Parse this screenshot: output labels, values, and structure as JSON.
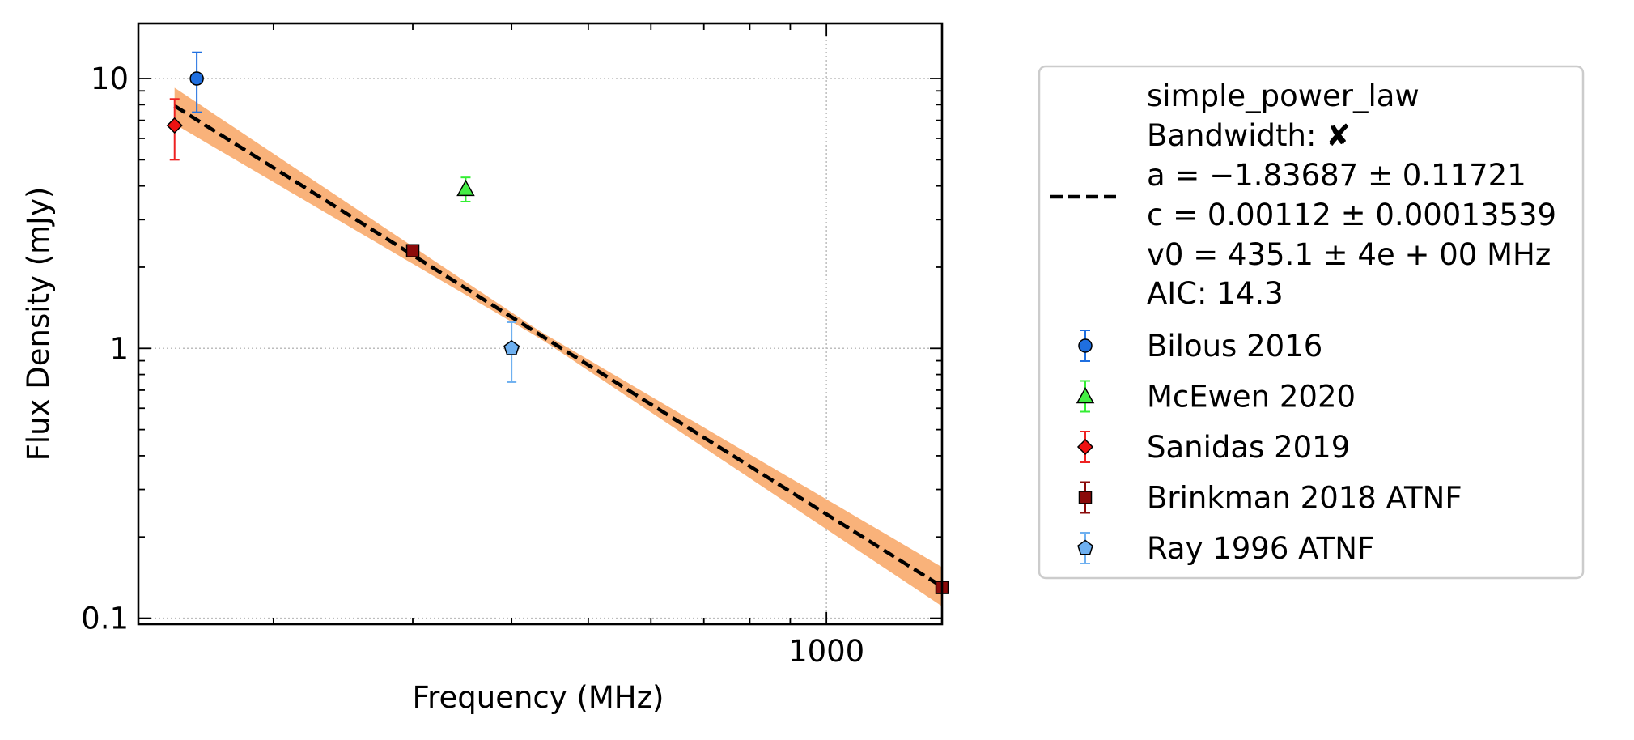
{
  "chart_data": {
    "type": "scatter",
    "xlabel": "Frequency (MHz)",
    "ylabel": "Flux Density (mJy)",
    "x_scale": "log",
    "y_scale": "log",
    "xlim": [
      135,
      1400
    ],
    "ylim": [
      0.095,
      16
    ],
    "x_ticks": [
      {
        "value": 1000,
        "label": "1000"
      }
    ],
    "y_ticks": [
      {
        "value": 0.1,
        "label": "0.1"
      },
      {
        "value": 1,
        "label": "1"
      },
      {
        "value": 10,
        "label": "10"
      }
    ],
    "grid": true,
    "legend_position": "outside-right",
    "fit": {
      "name": "simple_power_law",
      "bandwidth_label": "Bandwidth: ",
      "bandwidth_mark": "✘",
      "a_label": "a = −1.83687 ± 0.11721",
      "c_label": "c = 0.00112 ± 0.00013539",
      "v0_label": "v0 = 435.1 ± 4e + 00 MHz",
      "aic_label": "AIC: 14.3",
      "a": -1.83687,
      "a_err": 0.11721,
      "c": 0.00112,
      "c_err": 0.00013539,
      "v0": 435.1,
      "x_range": [
        150,
        1400
      ],
      "line_color": "#000000",
      "band_color": "#f9b27a"
    },
    "series": [
      {
        "name": "Bilous 2016",
        "marker": "circle",
        "color": "#1f6fe0",
        "err_color": "#1f6fe0",
        "points": [
          {
            "x": 160,
            "y": 10.0,
            "yerr_low": 2.5,
            "yerr_high": 2.5
          }
        ]
      },
      {
        "name": "McEwen 2020",
        "marker": "triangle",
        "color": "#44ee44",
        "err_color": "#33ee33",
        "points": [
          {
            "x": 350,
            "y": 3.9,
            "yerr_low": 0.4,
            "yerr_high": 0.4
          }
        ]
      },
      {
        "name": "Sanidas 2019",
        "marker": "diamond",
        "color": "#ee1111",
        "err_color": "#ee2222",
        "points": [
          {
            "x": 150,
            "y": 6.7,
            "yerr_low": 1.7,
            "yerr_high": 1.7
          }
        ]
      },
      {
        "name": "Brinkman 2018 ATNF",
        "marker": "square",
        "color": "#8b0a0a",
        "err_color": "#8b0a0a",
        "points": [
          {
            "x": 300,
            "y": 2.3,
            "yerr_low": 0.1,
            "yerr_high": 0.1
          },
          {
            "x": 1400,
            "y": 0.13,
            "yerr_low": 0.005,
            "yerr_high": 0.005
          }
        ]
      },
      {
        "name": "Ray 1996 ATNF",
        "marker": "pentagon",
        "color": "#6eb0f0",
        "err_color": "#6eb0f0",
        "points": [
          {
            "x": 400,
            "y": 1.0,
            "yerr_low": 0.25,
            "yerr_high": 0.25
          }
        ]
      }
    ]
  }
}
